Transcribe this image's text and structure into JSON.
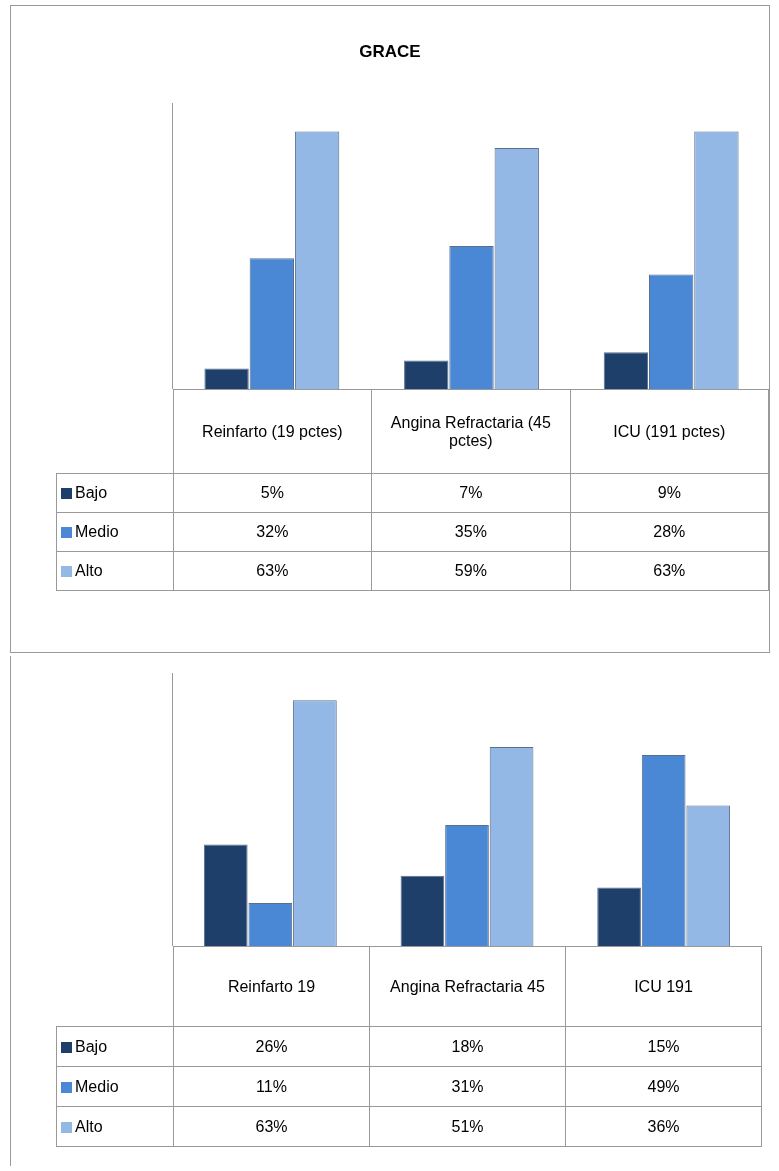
{
  "chart_data": [
    {
      "type": "bar",
      "title": "GRACE",
      "categories": [
        "Reinfarto (19 pctes)",
        "Angina Refractaria (45 pctes)",
        "ICU (191 pctes)"
      ],
      "legend": "bottom",
      "grid": false,
      "tick_labels": "x",
      "series": [
        {
          "name": "Bajo",
          "color": "#1f3f6b",
          "values": [
            5,
            7,
            9
          ],
          "value_labels": [
            "5%",
            "7%",
            "9%"
          ]
        },
        {
          "name": "Medio",
          "color": "#4a88d6",
          "values": [
            32,
            35,
            28
          ],
          "value_labels": [
            "32%",
            "35%",
            "28%"
          ]
        },
        {
          "name": "Alto",
          "color": "#94b8e6",
          "values": [
            63,
            59,
            63
          ],
          "value_labels": [
            "63%",
            "59%",
            "63%"
          ]
        }
      ]
    },
    {
      "type": "bar",
      "categories": [
        "Reinfarto 19",
        "Angina Refractaria 45",
        "ICU 191"
      ],
      "legend": "bottom",
      "grid": false,
      "tick_labels": "x",
      "series": [
        {
          "name": "Bajo",
          "color": "#1f3f6b",
          "values": [
            26,
            18,
            15
          ],
          "value_labels": [
            "26%",
            "18%",
            "15%"
          ]
        },
        {
          "name": "Medio",
          "color": "#4a88d6",
          "values": [
            11,
            31,
            49
          ],
          "value_labels": [
            "11%",
            "31%",
            "49%"
          ]
        },
        {
          "name": "Alto",
          "color": "#94b8e6",
          "values": [
            63,
            51,
            36
          ],
          "value_labels": [
            "63%",
            "51%",
            "36%"
          ]
        }
      ]
    }
  ]
}
